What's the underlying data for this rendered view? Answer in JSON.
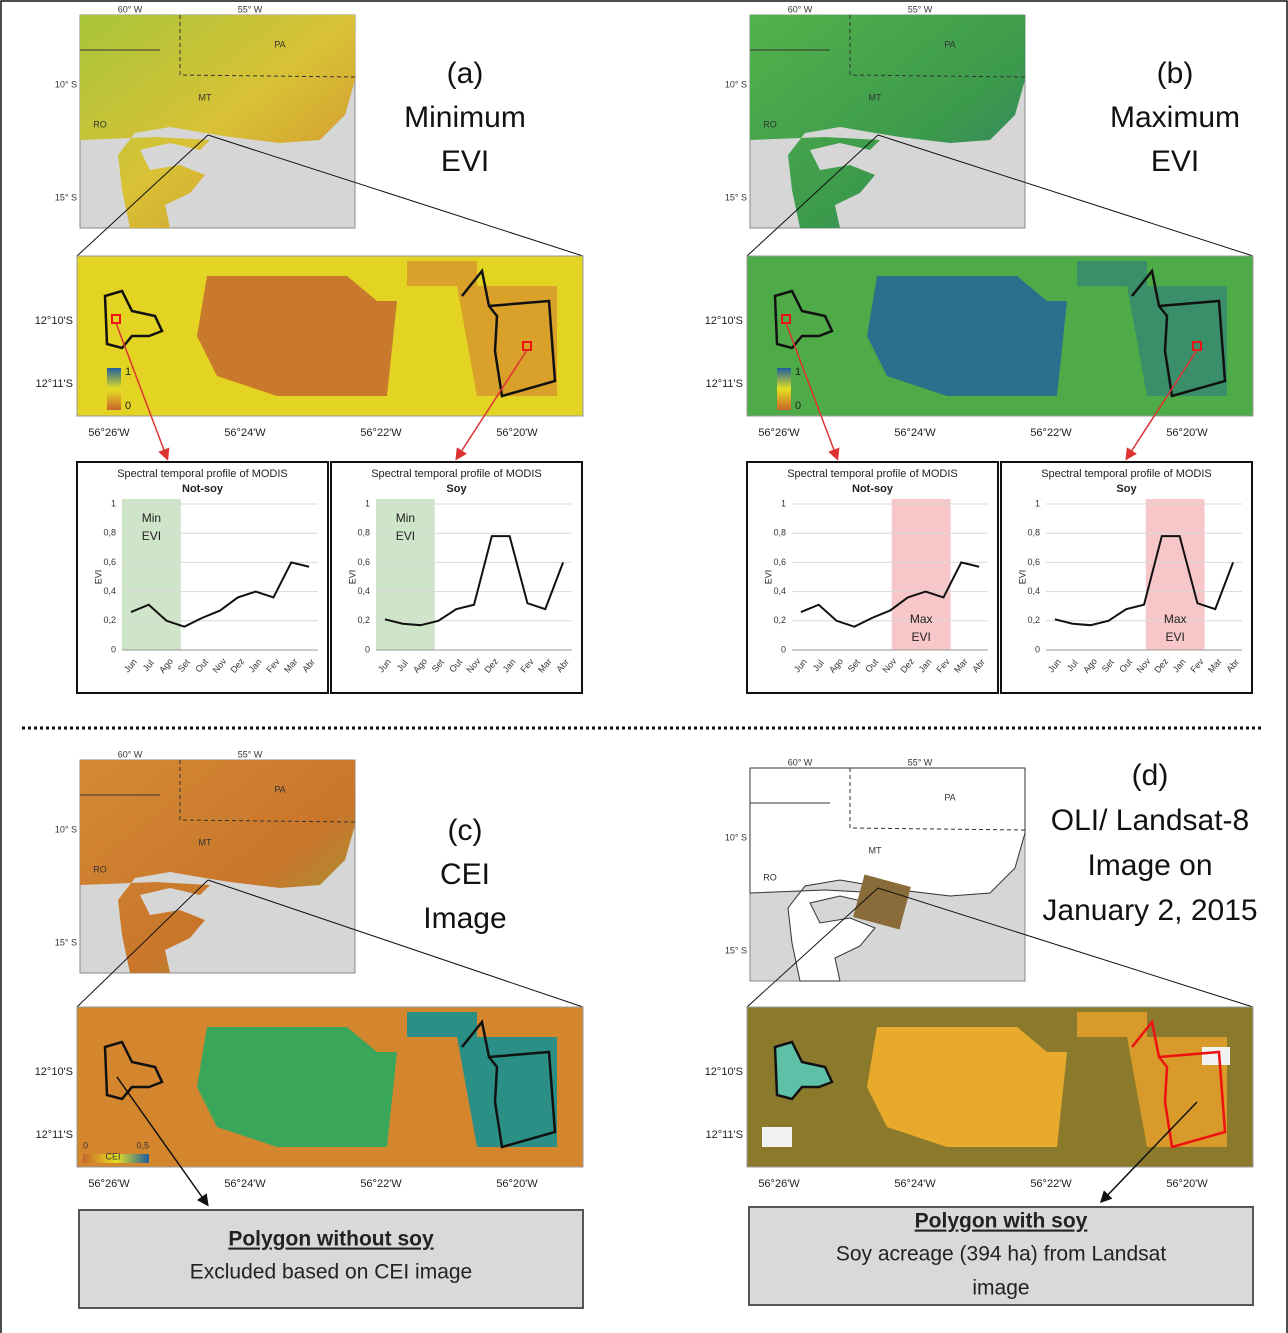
{
  "panels": [
    {
      "title_lines": [
        "(a)",
        "Minimum",
        "EVI"
      ],
      "overview": {
        "lon_labels": [
          "60° W",
          "55° W"
        ],
        "lat_labels": [
          "10° S",
          "15° S"
        ],
        "regions": [
          "PA",
          "MT",
          "RO"
        ]
      },
      "zoom": {
        "lat_labels": [
          "12°10'S",
          "12°11'S"
        ],
        "lon_labels": [
          "56°26'W",
          "56°24'W",
          "56°22'W",
          "56°20'W"
        ],
        "legend": [
          "1",
          "0"
        ]
      },
      "charts": [
        {
          "type": "line",
          "title": "Spectral temporal profile of MODIS",
          "subtitle": "Not-soy",
          "y_label": "EVI",
          "highlight_lines": [
            "Min",
            "EVI"
          ],
          "highlight_color": "#cfe5c9",
          "categories": [
            "Jun",
            "Jul",
            "Ago",
            "Set",
            "Out",
            "Nov",
            "Dez",
            "Jan",
            "Fev",
            "Mar",
            "Abr"
          ],
          "values": [
            0.26,
            0.31,
            0.2,
            0.16,
            0.22,
            0.27,
            0.36,
            0.4,
            0.36,
            0.6,
            0.57
          ],
          "color": "#111111",
          "ylim": [
            0,
            1
          ],
          "yticks": [
            0,
            {
              "value": 0.2,
              "label": "0,2"
            },
            {
              "value": 0.4,
              "label": "0,4"
            },
            {
              "value": 0.6,
              "label": "0,6"
            },
            {
              "value": 0.8,
              "label": "0,8"
            },
            1
          ],
          "grid": true
        },
        {
          "type": "line",
          "title": "Spectral temporal profile of MODIS",
          "subtitle": "Soy",
          "y_label": "EVI",
          "highlight_lines": [
            "Min",
            "EVI"
          ],
          "highlight_color": "#cfe5c9",
          "categories": [
            "Jun",
            "Jul",
            "Ago",
            "Set",
            "Out",
            "Nov",
            "Dez",
            "Jan",
            "Fev",
            "Mar",
            "Abr"
          ],
          "values": [
            0.21,
            0.18,
            0.17,
            0.2,
            0.28,
            0.31,
            0.78,
            0.78,
            0.32,
            0.28,
            0.6
          ],
          "color": "#111111",
          "ylim": [
            0,
            1
          ],
          "yticks": [
            0,
            {
              "value": 0.2,
              "label": "0,2"
            },
            {
              "value": 0.4,
              "label": "0,4"
            },
            {
              "value": 0.6,
              "label": "0,6"
            },
            {
              "value": 0.8,
              "label": "0,8"
            },
            1
          ],
          "grid": true
        }
      ]
    },
    {
      "title_lines": [
        "(b)",
        "Maximum",
        "EVI"
      ],
      "overview": {
        "lon_labels": [
          "60° W",
          "55° W"
        ],
        "lat_labels": [
          "10° S",
          "15° S"
        ],
        "regions": [
          "PA",
          "MT",
          "RO"
        ]
      },
      "zoom": {
        "lat_labels": [
          "12°10'S",
          "12°11'S"
        ],
        "lon_labels": [
          "56°26'W",
          "56°24'W",
          "56°22'W",
          "56°20'W"
        ],
        "legend": [
          "1",
          "0"
        ]
      },
      "charts": [
        {
          "type": "line",
          "title": "Spectral temporal profile of MODIS",
          "subtitle": "Not-soy",
          "y_label": "EVI",
          "highlight_lines": [
            "Max",
            "EVI"
          ],
          "highlight_color": "#f6c6c9",
          "categories": [
            "Jun",
            "Jul",
            "Ago",
            "Set",
            "Out",
            "Nov",
            "Dez",
            "Jan",
            "Fev",
            "Mar",
            "Abr"
          ],
          "values": [
            0.26,
            0.31,
            0.2,
            0.16,
            0.22,
            0.27,
            0.36,
            0.4,
            0.36,
            0.6,
            0.57
          ],
          "color": "#111111",
          "ylim": [
            0,
            1
          ],
          "yticks": [
            0,
            {
              "value": 0.2,
              "label": "0,2"
            },
            {
              "value": 0.4,
              "label": "0,4"
            },
            {
              "value": 0.6,
              "label": "0,6"
            },
            {
              "value": 0.8,
              "label": "0,8"
            },
            1
          ],
          "grid": true
        },
        {
          "type": "line",
          "title": "Spectral temporal profile of MODIS",
          "subtitle": "Soy",
          "y_label": "EVI",
          "highlight_lines": [
            "Max",
            "EVI"
          ],
          "highlight_color": "#f6c6c9",
          "categories": [
            "Jun",
            "Jul",
            "Ago",
            "Set",
            "Out",
            "Nov",
            "Dez",
            "Jan",
            "Fev",
            "Mar",
            "Abr"
          ],
          "values": [
            0.21,
            0.18,
            0.17,
            0.2,
            0.28,
            0.31,
            0.78,
            0.78,
            0.32,
            0.28,
            0.6
          ],
          "color": "#111111",
          "ylim": [
            0,
            1
          ],
          "yticks": [
            0,
            {
              "value": 0.2,
              "label": "0,2"
            },
            {
              "value": 0.4,
              "label": "0,4"
            },
            {
              "value": 0.6,
              "label": "0,6"
            },
            {
              "value": 0.8,
              "label": "0,8"
            },
            1
          ],
          "grid": true
        }
      ]
    },
    {
      "title_lines": [
        "(c)",
        "CEI",
        "Image"
      ],
      "overview": {
        "lon_labels": [
          "60° W",
          "55° W"
        ],
        "lat_labels": [
          "10° S",
          "15° S"
        ],
        "regions": [
          "PA",
          "MT",
          "RO"
        ]
      },
      "zoom": {
        "lat_labels": [
          "12°10'S",
          "12°11'S"
        ],
        "lon_labels": [
          "56°26'W",
          "56°24'W",
          "56°22'W",
          "56°20'W"
        ],
        "legend": [
          "0",
          "0,5",
          "CEI"
        ]
      },
      "result": {
        "title": "Polygon without soy",
        "lines": [
          "Excluded based on CEI image"
        ]
      }
    },
    {
      "title_lines": [
        "(d)",
        "OLI/ Landsat-8",
        "Image on",
        "January 2, 2015"
      ],
      "overview": {
        "lon_labels": [
          "60° W",
          "55° W"
        ],
        "lat_labels": [
          "10° S",
          "15° S"
        ],
        "regions": [
          "PA",
          "MT",
          "RO"
        ]
      },
      "zoom": {
        "lat_labels": [
          "12°10'S",
          "12°11'S"
        ],
        "lon_labels": [
          "56°26'W",
          "56°24'W",
          "56°22'W",
          "56°20'W"
        ]
      },
      "result": {
        "title": "Polygon with soy",
        "lines": [
          "Soy acreage (394 ha) from Landsat",
          "image"
        ]
      }
    }
  ]
}
